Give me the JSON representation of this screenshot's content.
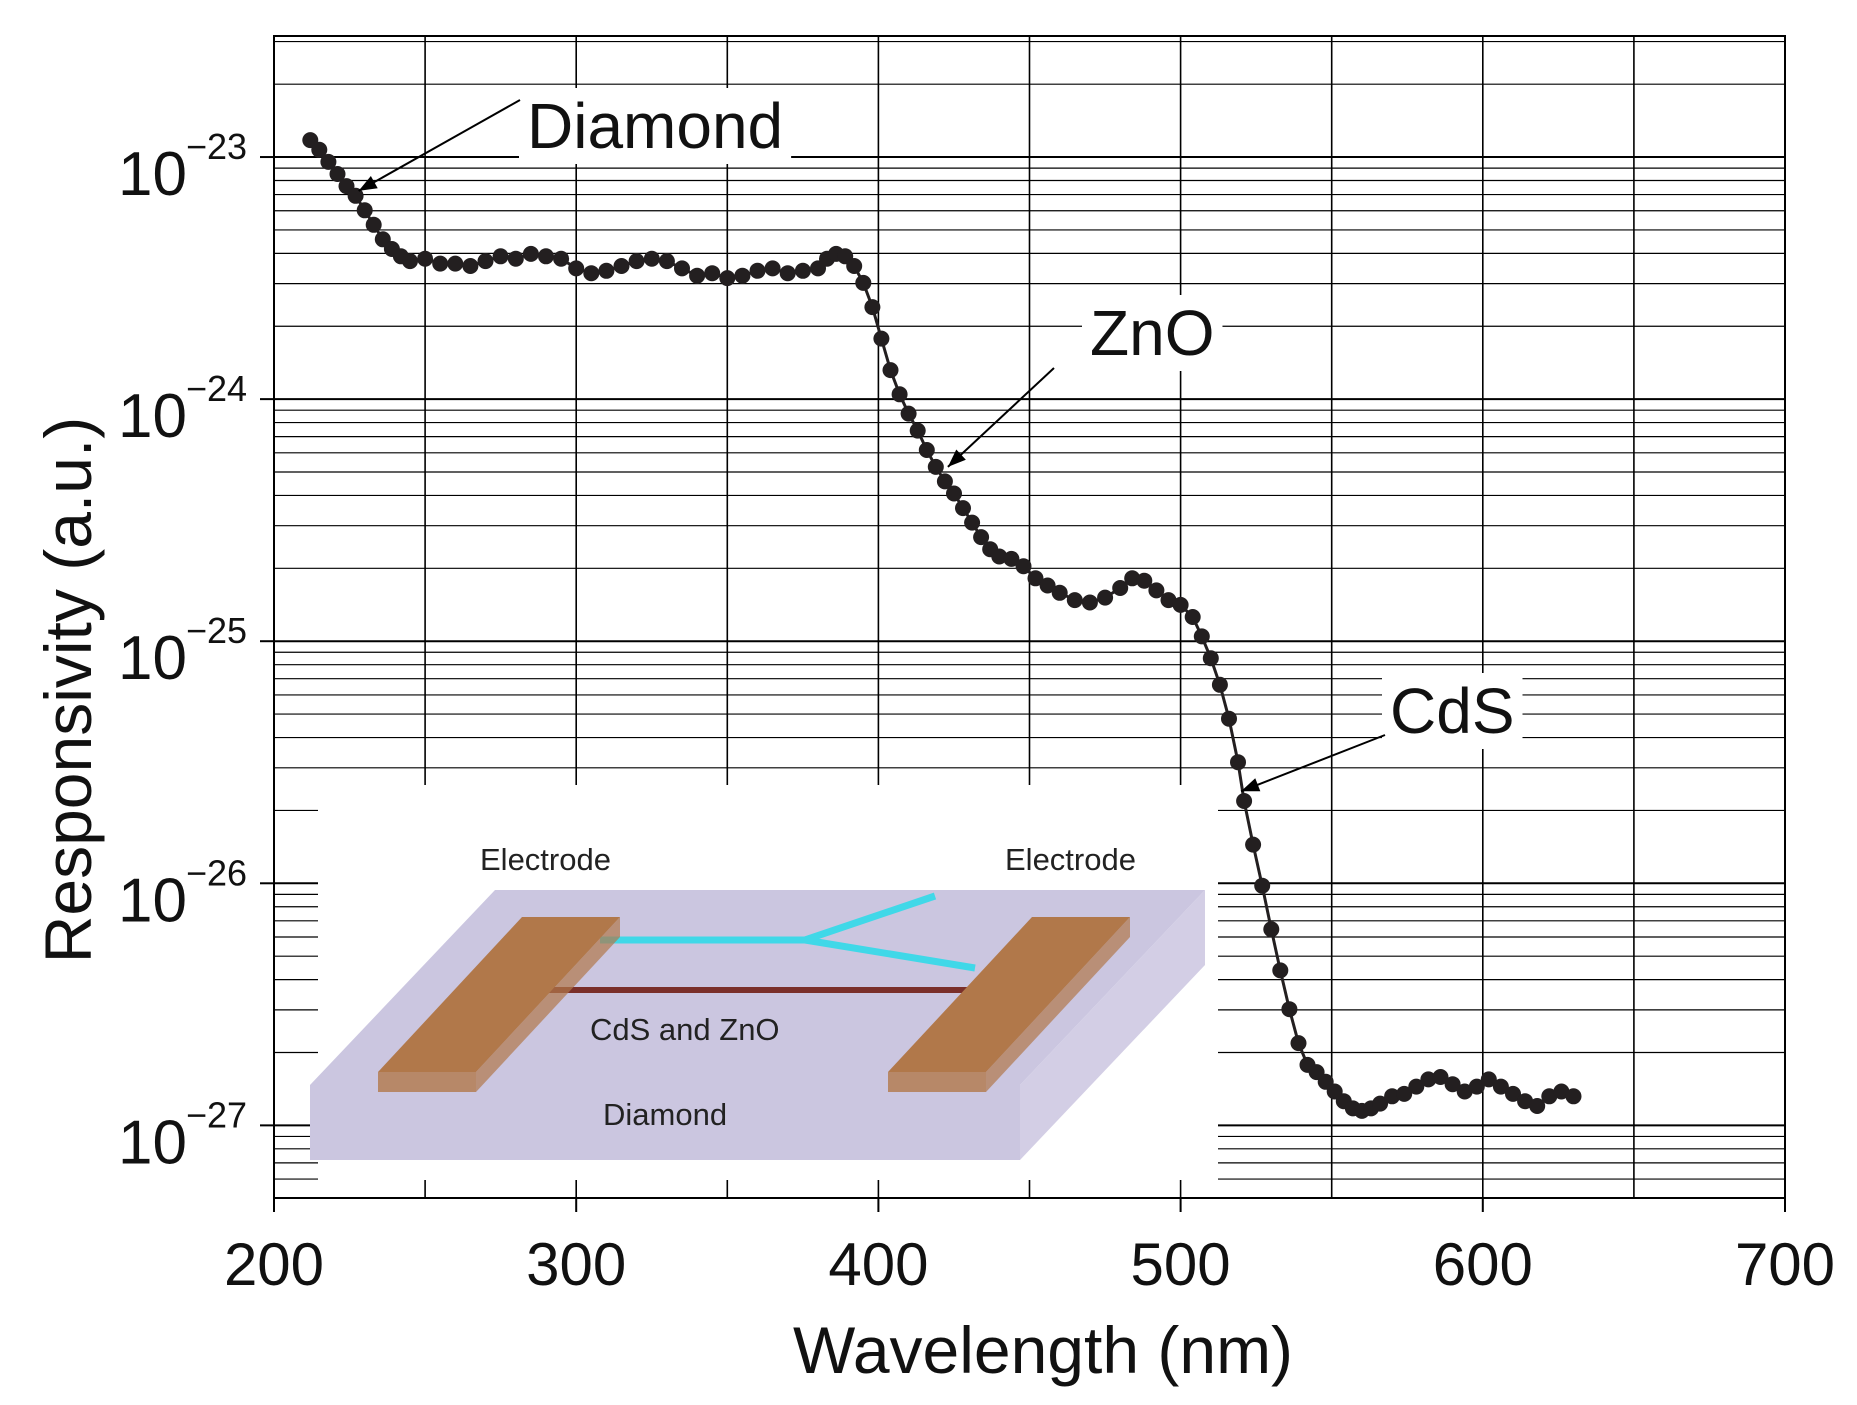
{
  "chart_data": {
    "type": "scatter",
    "xlabel": "Wavelength (nm)",
    "ylabel": "Responsivity (a.u.)",
    "xlim": [
      200,
      700
    ],
    "ylim_log10": [
      -27.3,
      -22.5
    ],
    "y_scale": "log",
    "grid": true,
    "x_ticks": [
      {
        "value": 200,
        "label": "200"
      },
      {
        "value": 300,
        "label": "300"
      },
      {
        "value": 400,
        "label": "400"
      },
      {
        "value": 500,
        "label": "500"
      },
      {
        "value": 600,
        "label": "600"
      },
      {
        "value": 700,
        "label": "700"
      }
    ],
    "y_ticks": [
      {
        "exp": -23,
        "base": "10",
        "sup": "−23"
      },
      {
        "exp": -24,
        "base": "10",
        "sup": "−24"
      },
      {
        "exp": -25,
        "base": "10",
        "sup": "−25"
      },
      {
        "exp": -26,
        "base": "10",
        "sup": "−26"
      },
      {
        "exp": -27,
        "base": "10",
        "sup": "−27"
      }
    ],
    "series": [
      {
        "marker_color": "#231f20",
        "points_log10": [
          [
            212,
            -22.93
          ],
          [
            215,
            -22.97
          ],
          [
            218,
            -23.02
          ],
          [
            221,
            -23.07
          ],
          [
            224,
            -23.12
          ],
          [
            227,
            -23.16
          ],
          [
            230,
            -23.22
          ],
          [
            233,
            -23.28
          ],
          [
            236,
            -23.34
          ],
          [
            239,
            -23.38
          ],
          [
            242,
            -23.41
          ],
          [
            245,
            -23.43
          ],
          [
            250,
            -23.42
          ],
          [
            255,
            -23.44
          ],
          [
            260,
            -23.44
          ],
          [
            265,
            -23.45
          ],
          [
            270,
            -23.43
          ],
          [
            275,
            -23.41
          ],
          [
            280,
            -23.42
          ],
          [
            285,
            -23.4
          ],
          [
            290,
            -23.41
          ],
          [
            295,
            -23.42
          ],
          [
            300,
            -23.46
          ],
          [
            305,
            -23.48
          ],
          [
            310,
            -23.47
          ],
          [
            315,
            -23.45
          ],
          [
            320,
            -23.43
          ],
          [
            325,
            -23.42
          ],
          [
            330,
            -23.43
          ],
          [
            335,
            -23.46
          ],
          [
            340,
            -23.49
          ],
          [
            345,
            -23.48
          ],
          [
            350,
            -23.5
          ],
          [
            355,
            -23.49
          ],
          [
            360,
            -23.47
          ],
          [
            365,
            -23.46
          ],
          [
            370,
            -23.48
          ],
          [
            375,
            -23.47
          ],
          [
            380,
            -23.46
          ],
          [
            383,
            -23.42
          ],
          [
            386,
            -23.4
          ],
          [
            389,
            -23.41
          ],
          [
            392,
            -23.45
          ],
          [
            395,
            -23.52
          ],
          [
            398,
            -23.62
          ],
          [
            401,
            -23.75
          ],
          [
            404,
            -23.88
          ],
          [
            407,
            -23.98
          ],
          [
            410,
            -24.06
          ],
          [
            413,
            -24.13
          ],
          [
            416,
            -24.21
          ],
          [
            419,
            -24.28
          ],
          [
            422,
            -24.34
          ],
          [
            425,
            -24.39
          ],
          [
            428,
            -24.45
          ],
          [
            431,
            -24.51
          ],
          [
            434,
            -24.57
          ],
          [
            437,
            -24.62
          ],
          [
            440,
            -24.65
          ],
          [
            444,
            -24.66
          ],
          [
            448,
            -24.69
          ],
          [
            452,
            -24.74
          ],
          [
            456,
            -24.77
          ],
          [
            460,
            -24.8
          ],
          [
            465,
            -24.83
          ],
          [
            470,
            -24.84
          ],
          [
            475,
            -24.82
          ],
          [
            480,
            -24.78
          ],
          [
            484,
            -24.74
          ],
          [
            488,
            -24.75
          ],
          [
            492,
            -24.79
          ],
          [
            496,
            -24.83
          ],
          [
            500,
            -24.85
          ],
          [
            504,
            -24.9
          ],
          [
            507,
            -24.98
          ],
          [
            510,
            -25.07
          ],
          [
            513,
            -25.18
          ],
          [
            516,
            -25.32
          ],
          [
            519,
            -25.5
          ],
          [
            521,
            -25.66
          ],
          [
            524,
            -25.84
          ],
          [
            527,
            -26.01
          ],
          [
            530,
            -26.19
          ],
          [
            533,
            -26.36
          ],
          [
            536,
            -26.52
          ],
          [
            539,
            -26.66
          ],
          [
            542,
            -26.75
          ],
          [
            545,
            -26.78
          ],
          [
            548,
            -26.82
          ],
          [
            551,
            -26.86
          ],
          [
            554,
            -26.9
          ],
          [
            557,
            -26.93
          ],
          [
            560,
            -26.94
          ],
          [
            563,
            -26.93
          ],
          [
            566,
            -26.91
          ],
          [
            570,
            -26.88
          ],
          [
            574,
            -26.87
          ],
          [
            578,
            -26.84
          ],
          [
            582,
            -26.81
          ],
          [
            586,
            -26.8
          ],
          [
            590,
            -26.83
          ],
          [
            594,
            -26.86
          ],
          [
            598,
            -26.84
          ],
          [
            602,
            -26.81
          ],
          [
            606,
            -26.84
          ],
          [
            610,
            -26.87
          ],
          [
            614,
            -26.9
          ],
          [
            618,
            -26.92
          ],
          [
            622,
            -26.88
          ],
          [
            626,
            -26.86
          ],
          [
            630,
            -26.88
          ]
        ]
      }
    ],
    "annotations": [
      {
        "text": "Diamond",
        "arrow_to": [
          228,
          -23.14
        ]
      },
      {
        "text": "ZnO",
        "arrow_to": [
          423,
          -24.28
        ]
      },
      {
        "text": "CdS",
        "arrow_to": [
          520,
          -25.62
        ]
      }
    ],
    "inset": {
      "electrode_left_label": "Electrode",
      "electrode_right_label": "Electrode",
      "nanowire_label": "CdS and ZnO",
      "substrate_label": "Diamond",
      "substrate_color": "#cbc6e0",
      "electrode_color": "#b1784a",
      "nanowire_color": "#40d8e8"
    }
  }
}
